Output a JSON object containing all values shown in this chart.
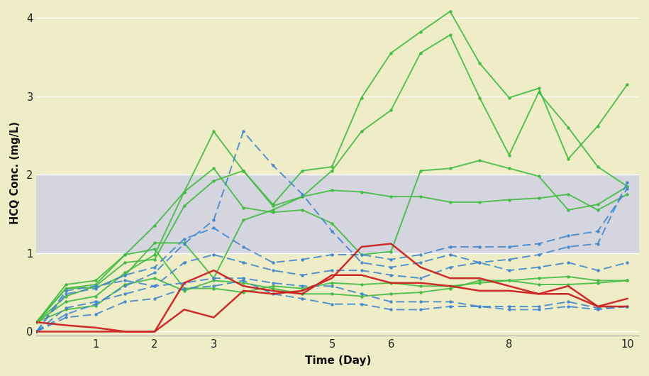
{
  "background_color": "#eeedc8",
  "plot_bg_color": "#eeedc8",
  "shaded_band": [
    1.0,
    2.0
  ],
  "shaded_band_color": "#d5d5df",
  "xmin": 0,
  "xmax": 10.2,
  "ymin": -0.05,
  "ymax": 4.1,
  "yticks": [
    0,
    1,
    2,
    3,
    4
  ],
  "xticks": [
    1,
    2,
    3,
    5,
    6,
    8,
    10
  ],
  "xlabel": "Time (Day)",
  "ylabel": "HCQ Conc. (mg/L)",
  "x_points": [
    0,
    0.5,
    1,
    1.5,
    2,
    2.5,
    3,
    3.5,
    4,
    4.5,
    5,
    5.5,
    6,
    6.5,
    7,
    7.5,
    8,
    8.5,
    9,
    9.5,
    10
  ],
  "green_lines": [
    [
      0.12,
      0.55,
      0.56,
      0.72,
      1.13,
      1.13,
      0.68,
      1.42,
      1.55,
      1.72,
      1.8,
      1.78,
      1.72,
      1.72,
      1.65,
      1.65,
      1.68,
      1.7,
      1.75,
      1.55,
      1.75
    ],
    [
      0.12,
      0.45,
      0.58,
      0.88,
      0.92,
      1.6,
      1.92,
      2.05,
      1.6,
      1.72,
      2.05,
      2.55,
      2.82,
      3.55,
      3.78,
      2.98,
      2.25,
      3.05,
      2.6,
      2.1,
      1.85
    ],
    [
      0.12,
      0.28,
      0.33,
      0.6,
      0.68,
      0.52,
      0.65,
      0.62,
      0.55,
      0.48,
      0.48,
      0.45,
      0.48,
      0.5,
      0.55,
      0.65,
      0.65,
      0.6,
      0.6,
      0.62,
      0.65
    ],
    [
      0.12,
      0.38,
      0.45,
      0.75,
      0.98,
      1.78,
      2.55,
      2.05,
      1.62,
      2.05,
      2.1,
      2.98,
      3.55,
      3.82,
      4.08,
      3.42,
      2.98,
      3.1,
      2.2,
      2.62,
      3.15
    ],
    [
      0.12,
      0.55,
      0.6,
      0.98,
      1.35,
      1.78,
      2.08,
      1.58,
      1.52,
      1.55,
      1.38,
      0.98,
      1.02,
      2.05,
      2.08,
      2.18,
      2.08,
      1.98,
      1.55,
      1.62,
      1.85
    ],
    [
      0.12,
      0.6,
      0.65,
      0.98,
      1.05,
      0.55,
      0.55,
      0.5,
      0.58,
      0.55,
      0.62,
      0.6,
      0.62,
      0.58,
      0.58,
      0.62,
      0.65,
      0.68,
      0.7,
      0.65,
      0.65
    ]
  ],
  "blue_dashed_lines": [
    [
      0.0,
      0.22,
      0.35,
      0.58,
      0.75,
      1.12,
      1.42,
      2.55,
      2.12,
      1.75,
      1.28,
      0.88,
      0.82,
      0.88,
      0.98,
      0.88,
      0.92,
      0.98,
      1.08,
      1.12,
      1.9
    ],
    [
      0.0,
      0.3,
      0.38,
      0.48,
      0.58,
      0.88,
      0.98,
      0.88,
      0.78,
      0.72,
      0.78,
      0.78,
      0.72,
      0.68,
      0.82,
      0.88,
      0.78,
      0.82,
      0.88,
      0.78,
      0.88
    ],
    [
      0.0,
      0.18,
      0.22,
      0.38,
      0.42,
      0.55,
      0.58,
      0.65,
      0.48,
      0.42,
      0.35,
      0.35,
      0.28,
      0.28,
      0.32,
      0.32,
      0.28,
      0.28,
      0.32,
      0.28,
      0.32
    ],
    [
      0.0,
      0.48,
      0.55,
      0.72,
      0.82,
      1.18,
      1.32,
      1.08,
      0.88,
      0.92,
      0.98,
      0.98,
      0.92,
      0.98,
      1.08,
      1.08,
      1.08,
      1.12,
      1.22,
      1.28,
      1.82
    ],
    [
      0.0,
      0.52,
      0.58,
      0.65,
      0.58,
      0.62,
      0.68,
      0.68,
      0.62,
      0.58,
      0.58,
      0.48,
      0.38,
      0.38,
      0.38,
      0.32,
      0.32,
      0.32,
      0.38,
      0.3,
      0.32
    ]
  ],
  "red_lines": [
    [
      0.12,
      0.08,
      0.05,
      0.0,
      0.0,
      0.28,
      0.18,
      0.52,
      0.48,
      0.52,
      0.68,
      1.08,
      1.12,
      0.82,
      0.68,
      0.68,
      0.58,
      0.48,
      0.48,
      0.32,
      0.42
    ],
    [
      0.0,
      0.0,
      0.0,
      0.0,
      0.0,
      0.62,
      0.78,
      0.58,
      0.52,
      0.48,
      0.72,
      0.72,
      0.62,
      0.62,
      0.58,
      0.52,
      0.52,
      0.48,
      0.58,
      0.32,
      0.32
    ]
  ]
}
